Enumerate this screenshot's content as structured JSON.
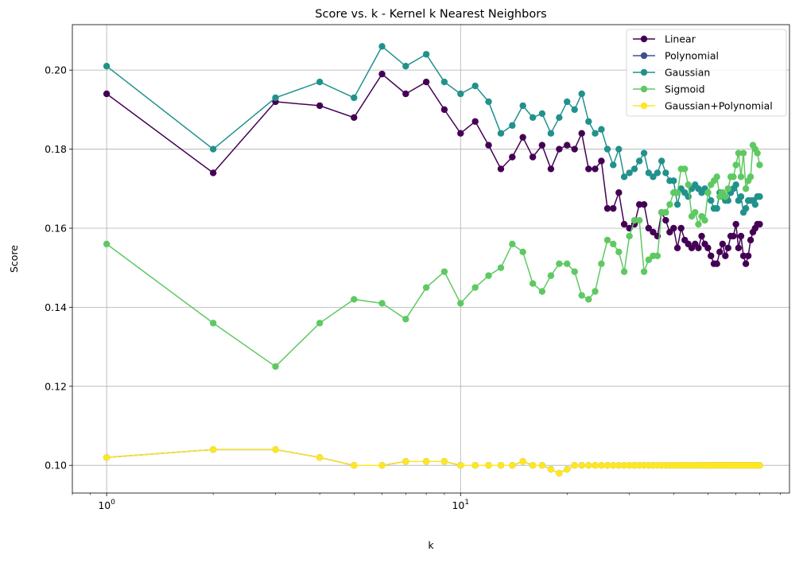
{
  "chart_data": {
    "type": "line",
    "title": "Score vs. k - Kernel k Nearest Neighbors",
    "xlabel": "k",
    "ylabel": "Score",
    "xscale": "log",
    "xlim": [
      0.8,
      85
    ],
    "ylim": [
      0.093,
      0.2115
    ],
    "grid": true,
    "legend_position": "top-right",
    "x_ticks": [
      {
        "value": 1,
        "base": "10",
        "exp": "0"
      },
      {
        "value": 10,
        "base": "10",
        "exp": "1"
      }
    ],
    "y_ticks": [
      {
        "value": 0.1,
        "label": "0.10"
      },
      {
        "value": 0.12,
        "label": "0.12"
      },
      {
        "value": 0.14,
        "label": "0.14"
      },
      {
        "value": 0.16,
        "label": "0.16"
      },
      {
        "value": 0.18,
        "label": "0.18"
      },
      {
        "value": 0.2,
        "label": "0.20"
      }
    ],
    "series": [
      {
        "name": "Linear",
        "color": "#440154",
        "values": [
          0.194,
          0.174,
          0.192,
          0.191,
          0.188,
          0.199,
          0.194,
          0.197,
          0.19,
          0.184,
          0.187,
          0.181,
          0.175,
          0.178,
          0.183,
          0.178,
          0.181,
          0.175,
          0.18,
          0.181,
          0.18,
          0.184,
          0.175,
          0.175,
          0.177,
          0.165,
          0.165,
          0.169,
          0.161,
          0.16,
          0.161,
          0.166,
          0.166,
          0.16,
          0.159,
          0.158,
          0.164,
          0.162,
          0.159,
          0.16,
          0.155,
          0.16,
          0.157,
          0.156,
          0.155,
          0.156,
          0.155,
          0.158,
          0.156,
          0.155,
          0.153,
          0.151,
          0.151,
          0.154,
          0.156,
          0.153,
          0.155,
          0.158,
          0.158,
          0.161,
          0.155,
          0.158,
          0.153,
          0.151,
          0.153,
          0.157,
          0.159,
          0.16,
          0.161,
          0.161
        ]
      },
      {
        "name": "Polynomial",
        "color": "#3b528b",
        "values": [
          0.102,
          0.104,
          0.104,
          0.102,
          0.1,
          0.1,
          0.101,
          0.101,
          0.101,
          0.1,
          0.1,
          0.1,
          0.1,
          0.1,
          0.101,
          0.1,
          0.1,
          0.099,
          0.098,
          0.099,
          0.1,
          0.1,
          0.1,
          0.1,
          0.1,
          0.1,
          0.1,
          0.1,
          0.1,
          0.1,
          0.1,
          0.1,
          0.1,
          0.1,
          0.1,
          0.1,
          0.1,
          0.1,
          0.1,
          0.1,
          0.1,
          0.1,
          0.1,
          0.1,
          0.1,
          0.1,
          0.1,
          0.1,
          0.1,
          0.1,
          0.1,
          0.1,
          0.1,
          0.1,
          0.1,
          0.1,
          0.1,
          0.1,
          0.1,
          0.1,
          0.1,
          0.1,
          0.1,
          0.1,
          0.1,
          0.1,
          0.1,
          0.1,
          0.1,
          0.1
        ]
      },
      {
        "name": "Gaussian",
        "color": "#21918c",
        "values": [
          0.201,
          0.18,
          0.193,
          0.197,
          0.193,
          0.206,
          0.201,
          0.204,
          0.197,
          0.194,
          0.196,
          0.192,
          0.184,
          0.186,
          0.191,
          0.188,
          0.189,
          0.184,
          0.188,
          0.192,
          0.19,
          0.194,
          0.187,
          0.184,
          0.185,
          0.18,
          0.176,
          0.18,
          0.173,
          0.174,
          0.175,
          0.177,
          0.179,
          0.174,
          0.173,
          0.174,
          0.177,
          0.174,
          0.172,
          0.172,
          0.166,
          0.17,
          0.169,
          0.168,
          0.17,
          0.171,
          0.17,
          0.169,
          0.17,
          0.169,
          0.167,
          0.165,
          0.165,
          0.169,
          0.168,
          0.167,
          0.167,
          0.169,
          0.17,
          0.171,
          0.167,
          0.168,
          0.164,
          0.165,
          0.167,
          0.167,
          0.167,
          0.166,
          0.168,
          0.168
        ]
      },
      {
        "name": "Sigmoid",
        "color": "#5ec962",
        "values": [
          0.156,
          0.136,
          0.125,
          0.136,
          0.142,
          0.141,
          0.137,
          0.145,
          0.149,
          0.141,
          0.145,
          0.148,
          0.15,
          0.156,
          0.154,
          0.146,
          0.144,
          0.148,
          0.151,
          0.151,
          0.149,
          0.143,
          0.142,
          0.144,
          0.151,
          0.157,
          0.156,
          0.154,
          0.149,
          0.158,
          0.162,
          0.162,
          0.149,
          0.152,
          0.153,
          0.153,
          0.164,
          0.164,
          0.166,
          0.169,
          0.169,
          0.175,
          0.175,
          0.171,
          0.163,
          0.164,
          0.161,
          0.163,
          0.162,
          0.169,
          0.171,
          0.172,
          0.173,
          0.168,
          0.169,
          0.168,
          0.17,
          0.173,
          0.173,
          0.176,
          0.179,
          0.173,
          0.179,
          0.17,
          0.172,
          0.173,
          0.181,
          0.18,
          0.179,
          0.176
        ]
      },
      {
        "name": "Gaussian+Polynomial",
        "color": "#fde725",
        "values": [
          0.102,
          0.104,
          0.104,
          0.102,
          0.1,
          0.1,
          0.101,
          0.101,
          0.101,
          0.1,
          0.1,
          0.1,
          0.1,
          0.1,
          0.101,
          0.1,
          0.1,
          0.099,
          0.098,
          0.099,
          0.1,
          0.1,
          0.1,
          0.1,
          0.1,
          0.1,
          0.1,
          0.1,
          0.1,
          0.1,
          0.1,
          0.1,
          0.1,
          0.1,
          0.1,
          0.1,
          0.1,
          0.1,
          0.1,
          0.1,
          0.1,
          0.1,
          0.1,
          0.1,
          0.1,
          0.1,
          0.1,
          0.1,
          0.1,
          0.1,
          0.1,
          0.1,
          0.1,
          0.1,
          0.1,
          0.1,
          0.1,
          0.1,
          0.1,
          0.1,
          0.1,
          0.1,
          0.1,
          0.1,
          0.1,
          0.1,
          0.1,
          0.1,
          0.1,
          0.1
        ]
      }
    ],
    "x_range": [
      1,
      70
    ]
  }
}
